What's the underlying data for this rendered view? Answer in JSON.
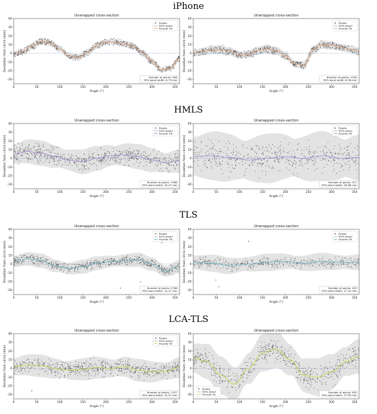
{
  "section_titles": [
    "iPhone",
    "HMLS",
    "TLS",
    "LCA-TLS"
  ],
  "colors": {
    "points": "#222222",
    "band": "#d9d9d9",
    "fit": {
      "iPhone": "#e8a37a",
      "HMLS": "#a98bd4",
      "TLS": "#6fb6c6",
      "LCA-TLS": "#c6d54a"
    },
    "zero_line": "#6a7fbf"
  },
  "chart_data": [
    {
      "section": "iPhone",
      "type": "scatter",
      "title": "Unwrapped cross-section",
      "xlabel": "Angle (°)",
      "ylabel": "Deviation from circle (mm)",
      "xlim": [
        0,
        360
      ],
      "ylim": [
        -35,
        40
      ],
      "xticks": [
        0,
        50,
        100,
        150,
        200,
        250,
        300,
        350
      ],
      "yticks": [
        -30,
        -20,
        -10,
        0,
        10,
        20,
        30,
        40
      ],
      "legend": [
        "Points",
        "95% band",
        "Fourier Fit"
      ],
      "legend_position": "top-right",
      "info": [
        "Number of points: 658",
        "95% band width: 6.79 mm"
      ],
      "fit": {
        "x": [
          0,
          20,
          40,
          60,
          80,
          100,
          120,
          140,
          160,
          180,
          200,
          220,
          240,
          260,
          280,
          300,
          320,
          340,
          360
        ],
        "y": [
          -1,
          2,
          8,
          14,
          12,
          5,
          -3,
          -5,
          1,
          9,
          13,
          13,
          11,
          8,
          0,
          -9,
          -19,
          -17,
          -6
        ]
      },
      "band_width": 6.79,
      "noise": 3,
      "outliers": 0
    },
    {
      "section": "iPhone",
      "type": "scatter",
      "title": "Unwrapped cross-section",
      "xlabel": "Angle (°)",
      "ylabel": "Deviation from circle (mm)",
      "xlim": [
        0,
        360
      ],
      "ylim": [
        -35,
        40
      ],
      "xticks": [
        0,
        50,
        100,
        150,
        200,
        250,
        300,
        350
      ],
      "yticks": [
        -30,
        -20,
        -10,
        0,
        10,
        20,
        30,
        40
      ],
      "legend": [
        "Points",
        "95% band",
        "Fourier Fit"
      ],
      "legend_position": "top-right",
      "info": [
        "Number of points: 1246",
        "95% band width: 8.58 mm"
      ],
      "fit": {
        "x": [
          0,
          20,
          40,
          60,
          80,
          100,
          120,
          140,
          160,
          180,
          200,
          220,
          240,
          260,
          280,
          300,
          320,
          340,
          360
        ],
        "y": [
          0,
          2,
          4,
          4,
          2,
          -2,
          -1,
          3,
          5,
          3,
          -3,
          -12,
          -14,
          4,
          10,
          9,
          7,
          5,
          2
        ]
      },
      "band_width": 8.58,
      "noise": 3.5,
      "outliers": 0
    },
    {
      "section": "HMLS",
      "type": "scatter",
      "title": "Unwrapped cross-section",
      "xlabel": "Angle (°)",
      "ylabel": "Deviation from circle (mm)",
      "xlim": [
        0,
        360
      ],
      "ylim": [
        -35,
        40
      ],
      "xticks": [
        0,
        50,
        100,
        150,
        200,
        250,
        300,
        350
      ],
      "yticks": [
        -30,
        -20,
        -10,
        0,
        10,
        20,
        30,
        40
      ],
      "legend": [
        "Points",
        "95% band",
        "Fourier Fit"
      ],
      "legend_position": "top-right",
      "info": [
        "Number of points: 1966",
        "95% band width: 25.47 mm"
      ],
      "fit": {
        "x": [
          0,
          30,
          60,
          90,
          120,
          150,
          180,
          210,
          240,
          270,
          300,
          330,
          360
        ],
        "y": [
          5,
          8,
          6,
          2,
          -2,
          -4,
          0,
          3,
          4,
          2,
          -2,
          -5,
          -3
        ]
      },
      "band_width": 25.47,
      "noise": 8,
      "outliers": 0
    },
    {
      "section": "HMLS",
      "type": "scatter",
      "title": "Unwrapped cross-section",
      "xlabel": "Angle (°)",
      "ylabel": "Deviation from circle (mm)",
      "xlim": [
        0,
        360
      ],
      "ylim": [
        -35,
        40
      ],
      "xticks": [
        0,
        50,
        100,
        150,
        200,
        250,
        300,
        350
      ],
      "yticks": [
        -30,
        -20,
        -10,
        0,
        10,
        20,
        30,
        40
      ],
      "legend": [
        "Points",
        "95% band",
        "Fourier Fit"
      ],
      "legend_position": "top-right",
      "info": [
        "Number of points: 511",
        "95% band width: 49.68 mm"
      ],
      "fit": {
        "x": [
          0,
          40,
          80,
          120,
          160,
          200,
          240,
          280,
          320,
          360
        ],
        "y": [
          2,
          3,
          1,
          -2,
          0,
          2,
          0,
          3,
          0,
          1
        ]
      },
      "band_width": 49.68,
      "noise": 14,
      "outliers": 0
    },
    {
      "section": "TLS",
      "type": "scatter",
      "title": "Unwrapped cross-section",
      "xlabel": "Angle (°)",
      "ylabel": "Deviation from circle (mm)",
      "xlim": [
        0,
        360
      ],
      "ylim": [
        -35,
        40
      ],
      "xticks": [
        0,
        50,
        100,
        150,
        200,
        250,
        300,
        350
      ],
      "yticks": [
        -30,
        -20,
        -10,
        0,
        10,
        20,
        30,
        40
      ],
      "legend": [
        "Points",
        "95% band",
        "Fourier Fit"
      ],
      "legend_position": "top-right",
      "info": [
        "Number of points: 2766",
        "95% band width: 14.27 mm"
      ],
      "fit": {
        "x": [
          0,
          30,
          60,
          90,
          120,
          150,
          180,
          210,
          240,
          270,
          300,
          330,
          360
        ],
        "y": [
          3,
          6,
          4,
          -2,
          -5,
          -3,
          1,
          3,
          4,
          5,
          0,
          -8,
          -3
        ]
      },
      "band_width": 14.27,
      "noise": 4,
      "outliers": 3
    },
    {
      "section": "TLS",
      "type": "scatter",
      "title": "Unwrapped cross-section",
      "xlabel": "Angle (°)",
      "ylabel": "Deviation from circle (mm)",
      "xlim": [
        0,
        360
      ],
      "ylim": [
        -35,
        40
      ],
      "xticks": [
        0,
        50,
        100,
        150,
        200,
        250,
        300,
        350
      ],
      "yticks": [
        -30,
        -20,
        -10,
        0,
        10,
        20,
        30,
        40
      ],
      "legend": [
        "Points",
        "95% band",
        "Fourier Fit"
      ],
      "legend_position": "top-right",
      "info": [
        "Number of points: 425",
        "95% band width: 17.42 mm"
      ],
      "fit": {
        "x": [
          0,
          40,
          80,
          120,
          160,
          200,
          240,
          280,
          320,
          360
        ],
        "y": [
          2,
          1,
          -2,
          0,
          2,
          3,
          1,
          3,
          2,
          2
        ]
      },
      "band_width": 17.42,
      "noise": 5,
      "outliers": 4
    },
    {
      "section": "LCA-TLS",
      "type": "scatter",
      "title": "Unwrapped cross-section",
      "xlabel": "Angle (°)",
      "ylabel": "Deviation from circle (mm)",
      "xlim": [
        0,
        360
      ],
      "ylim": [
        -35,
        40
      ],
      "xticks": [
        0,
        50,
        100,
        150,
        200,
        250,
        300,
        350
      ],
      "yticks": [
        -30,
        -20,
        -10,
        0,
        10,
        20,
        30,
        40
      ],
      "legend": [
        "Points",
        "95% band",
        "Fourier Fit"
      ],
      "legend_position": "top-left",
      "info": [
        "Number of points: 1107",
        "95% band width: 22.57 mm"
      ],
      "fit": {
        "x": [
          0,
          30,
          60,
          90,
          120,
          150,
          180,
          210,
          240,
          270,
          300,
          330,
          360
        ],
        "y": [
          2,
          4,
          3,
          0,
          -2,
          -1,
          1,
          0,
          2,
          -2,
          -4,
          -3,
          1
        ]
      },
      "band_width": 22.57,
      "noise": 7,
      "outliers": 2
    },
    {
      "section": "LCA-TLS",
      "type": "scatter",
      "title": "Unwrapped cross-section",
      "xlabel": "Angle (°)",
      "ylabel": "Deviation from circle (mm)",
      "xlim": [
        0,
        360
      ],
      "ylim": [
        -35,
        40
      ],
      "xticks": [
        0,
        50,
        100,
        150,
        200,
        250,
        300,
        350
      ],
      "yticks": [
        -30,
        -20,
        -10,
        0,
        10,
        20,
        30,
        40
      ],
      "legend": [
        "Points",
        "95% band",
        "Fourier Fit"
      ],
      "legend_position": "bottom-left",
      "info": [
        "Number of points: 630",
        "95% band width: 37.85 mm"
      ],
      "fit": {
        "x": [
          0,
          30,
          60,
          90,
          120,
          150,
          180,
          210,
          240,
          270,
          300,
          330,
          360
        ],
        "y": [
          12,
          8,
          -8,
          -18,
          0,
          18,
          22,
          10,
          -8,
          -10,
          -4,
          8,
          14
        ]
      },
      "band_width": 37.85,
      "noise": 10,
      "outliers": 0
    }
  ]
}
